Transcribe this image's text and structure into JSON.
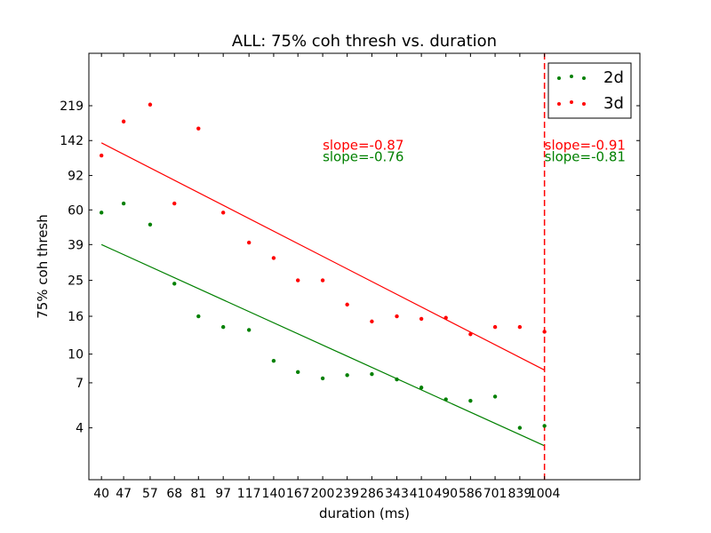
{
  "chart_data": {
    "type": "scatter",
    "title": "ALL: 75% coh thresh vs. duration",
    "xlabel": "duration (ms)",
    "ylabel": "75% coh thresh",
    "x_scale": "log",
    "y_scale": "log",
    "xlim": [
      36.5,
      2010
    ],
    "ylim": [
      2.1,
      420
    ],
    "x_ticks": [
      40,
      47,
      57,
      68,
      81,
      97,
      117,
      140,
      167,
      200,
      239,
      286,
      343,
      410,
      490,
      586,
      701,
      839,
      1004
    ],
    "x_tick_labels": [
      "40",
      "47",
      "57",
      "68",
      "81",
      "97",
      "117",
      "140",
      "167",
      "200",
      "239",
      "286",
      "343",
      "410",
      "490",
      "586",
      "701",
      "839",
      "1004"
    ],
    "y_ticks": [
      4,
      7,
      10,
      16,
      25,
      39,
      60,
      92,
      142,
      219
    ],
    "y_tick_labels": [
      "4",
      "7",
      "10",
      "16",
      "25",
      "39",
      "60",
      "92",
      "142",
      "219"
    ],
    "grid": false,
    "legend_position": "top-right",
    "series": [
      {
        "name": "2d",
        "color": "#008000",
        "x": [
          40,
          47,
          57,
          68,
          81,
          97,
          117,
          140,
          167,
          200,
          239,
          286,
          343,
          410,
          490,
          586,
          701,
          839,
          1004
        ],
        "y": [
          58,
          65,
          50,
          24,
          16,
          14,
          13.5,
          9.2,
          8.0,
          7.4,
          7.7,
          7.8,
          7.3,
          6.6,
          5.7,
          5.6,
          5.9,
          4.0,
          4.1
        ],
        "fit": {
          "x": [
            40,
            1004
          ],
          "y": [
            39,
            3.2
          ]
        }
      },
      {
        "name": "3d",
        "color": "#ff0000",
        "x": [
          40,
          47,
          57,
          68,
          81,
          97,
          117,
          140,
          167,
          200,
          239,
          286,
          343,
          410,
          490,
          586,
          701,
          839,
          1004
        ],
        "y": [
          118,
          180,
          222,
          65,
          165,
          58,
          40,
          33,
          25,
          25,
          18.5,
          15,
          16,
          15.5,
          15.7,
          12.8,
          14,
          14,
          13.2
        ],
        "fit": {
          "x": [
            40,
            1004
          ],
          "y": [
            138,
            8.2
          ]
        }
      }
    ],
    "vertical_line": {
      "x": 1004,
      "color": "#ff0000",
      "style": "dashed"
    },
    "annotations": [
      {
        "text": "slope=-0.87",
        "color": "#ff0000",
        "x": 200,
        "y": 127
      },
      {
        "text": "slope=-0.76",
        "color": "#008000",
        "x": 200,
        "y": 110
      },
      {
        "text": "slope=-0.91",
        "color": "#ff0000",
        "x": 1004,
        "y": 127
      },
      {
        "text": "slope=-0.81",
        "color": "#008000",
        "x": 1004,
        "y": 110
      }
    ]
  }
}
